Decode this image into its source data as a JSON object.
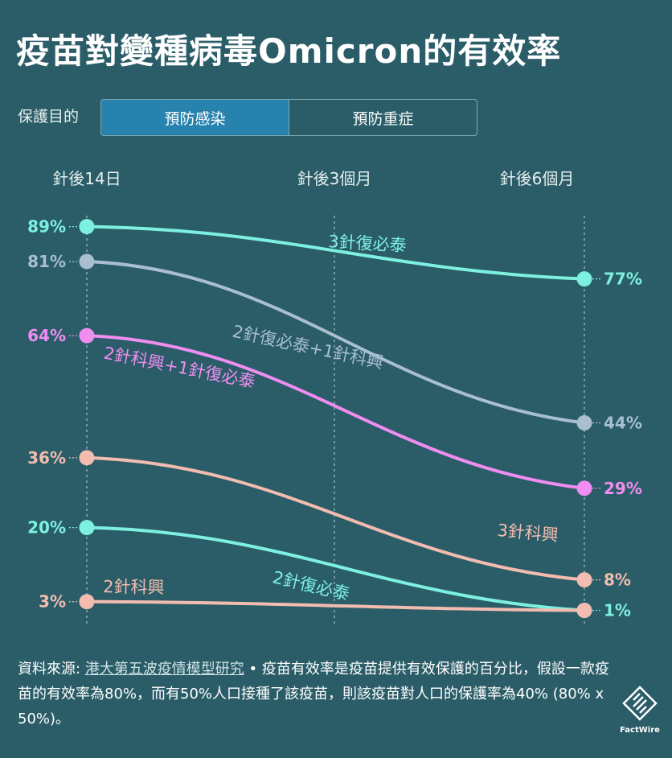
{
  "title": "疫苗對變種病毒Omicron的有效率",
  "filter": {
    "label": "保護目的",
    "options": [
      "預防感染",
      "預防重症"
    ],
    "selected": "預防感染"
  },
  "timepoints": [
    "針後14日",
    "針後3個月",
    "針後6個月"
  ],
  "chart_data": {
    "type": "line",
    "x": [
      "針後14日",
      "針後6個月"
    ],
    "ylim": [
      0,
      100
    ],
    "series": [
      {
        "name": "3針復必泰",
        "values": [
          89,
          77
        ],
        "color": "#7ef0e0",
        "start_label": "89%",
        "end_label": "77%"
      },
      {
        "name": "2針復必泰+1針科興",
        "values": [
          81,
          44
        ],
        "color": "#a9bfd0",
        "start_label": "81%",
        "end_label": "44%"
      },
      {
        "name": "2針科興+1針復必泰",
        "values": [
          64,
          29
        ],
        "color": "#ef8df0",
        "start_label": "64%",
        "end_label": "29%"
      },
      {
        "name": "3針科興",
        "values": [
          36,
          8
        ],
        "color": "#f3bcb0",
        "start_label": "36%",
        "end_label": "8%"
      },
      {
        "name": "2針復必泰",
        "values": [
          20,
          1
        ],
        "color": "#7ef0e0",
        "start_label": "20%",
        "end_label": "1%"
      },
      {
        "name": "2針科興",
        "values": [
          3,
          1
        ],
        "color": "#f3bcb0",
        "start_label": "3%",
        "end_label": ""
      }
    ]
  },
  "note": {
    "prefix": "資料來源: ",
    "source": "港大第五波疫情模型研究",
    "text": " • 疫苗有效率是疫苗提供有效保護的百分比，假設一款疫苗的有效率為80%，而有50%人口接種了該疫苗，則該疫苗對人口的保護率為40% (80% x 50%)。"
  },
  "logo": {
    "text": "FactWire"
  }
}
